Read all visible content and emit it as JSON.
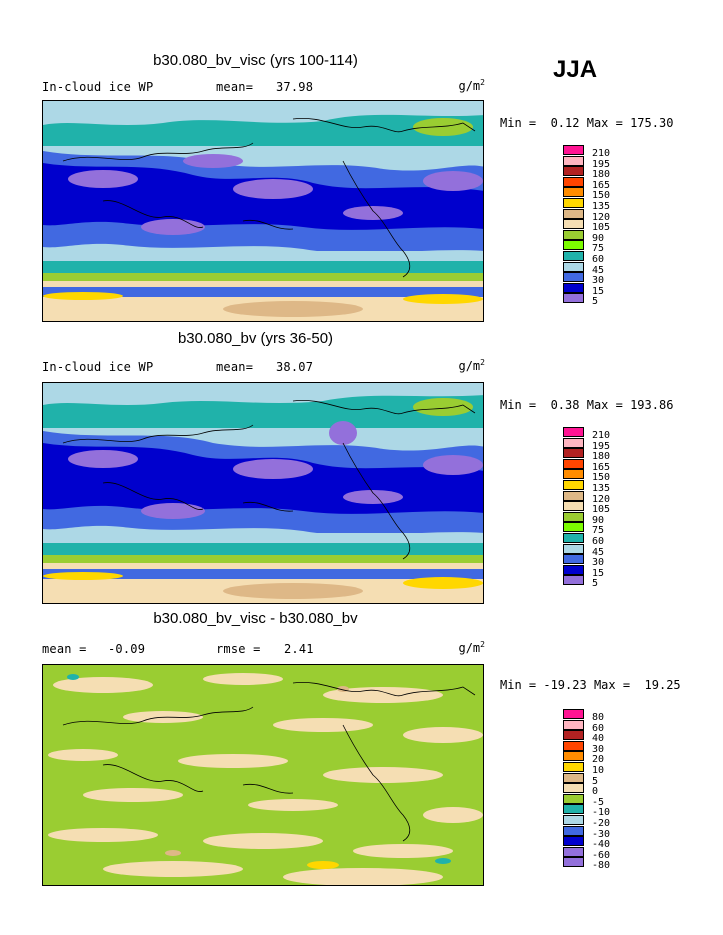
{
  "season": "JJA",
  "chart_data": [
    {
      "type": "heatmap",
      "title": "b30.080_bv_visc (yrs 100-114)",
      "left_label": "In-cloud ice WP",
      "stat_label": "mean=",
      "stat_value": "37.98",
      "units": "g/m",
      "units_exp": "2",
      "min_label": "Min =",
      "min_value": "0.12",
      "max_label": "Max =",
      "max_value": "175.30",
      "levels": [
        "210",
        "195",
        "180",
        "165",
        "150",
        "135",
        "120",
        "105",
        "90",
        "75",
        "60",
        "45",
        "30",
        "15",
        "5"
      ],
      "colors": [
        "#ff1493",
        "#ffb6c1",
        "#b22222",
        "#ff4500",
        "#ff8c00",
        "#ffd700",
        "#deb887",
        "#f5deb3",
        "#9acd32",
        "#7cfc00",
        "#20b2aa",
        "#add8e6",
        "#4169e1",
        "#0000cd",
        "#9370db"
      ]
    },
    {
      "type": "heatmap",
      "title": "b30.080_bv (yrs 36-50)",
      "left_label": "In-cloud ice WP",
      "stat_label": "mean=",
      "stat_value": "38.07",
      "units": "g/m",
      "units_exp": "2",
      "min_label": "Min =",
      "min_value": "0.38",
      "max_label": "Max =",
      "max_value": "193.86",
      "levels": [
        "210",
        "195",
        "180",
        "165",
        "150",
        "135",
        "120",
        "105",
        "90",
        "75",
        "60",
        "45",
        "30",
        "15",
        "5"
      ],
      "colors": [
        "#ff1493",
        "#ffb6c1",
        "#b22222",
        "#ff4500",
        "#ff8c00",
        "#ffd700",
        "#deb887",
        "#f5deb3",
        "#9acd32",
        "#7cfc00",
        "#20b2aa",
        "#add8e6",
        "#4169e1",
        "#0000cd",
        "#9370db"
      ]
    },
    {
      "type": "heatmap",
      "title": "b30.080_bv_visc - b30.080_bv",
      "left_label": "mean =",
      "left_value": "-0.09",
      "stat_label": "rmse =",
      "stat_value": "2.41",
      "units": "g/m",
      "units_exp": "2",
      "min_label": "Min =",
      "min_value": "-19.23",
      "max_label": "Max =",
      "max_value": "19.25",
      "levels": [
        "80",
        "60",
        "40",
        "30",
        "20",
        "10",
        "5",
        "0",
        "-5",
        "-10",
        "-20",
        "-30",
        "-40",
        "-60",
        "-80"
      ],
      "colors": [
        "#ff1493",
        "#ffb6c1",
        "#b22222",
        "#ff4500",
        "#ff8c00",
        "#ffd700",
        "#deb887",
        "#f5deb3",
        "#9acd32",
        "#20b2aa",
        "#add8e6",
        "#4169e1",
        "#0000cd",
        "#9370db",
        "#9370db"
      ]
    }
  ]
}
